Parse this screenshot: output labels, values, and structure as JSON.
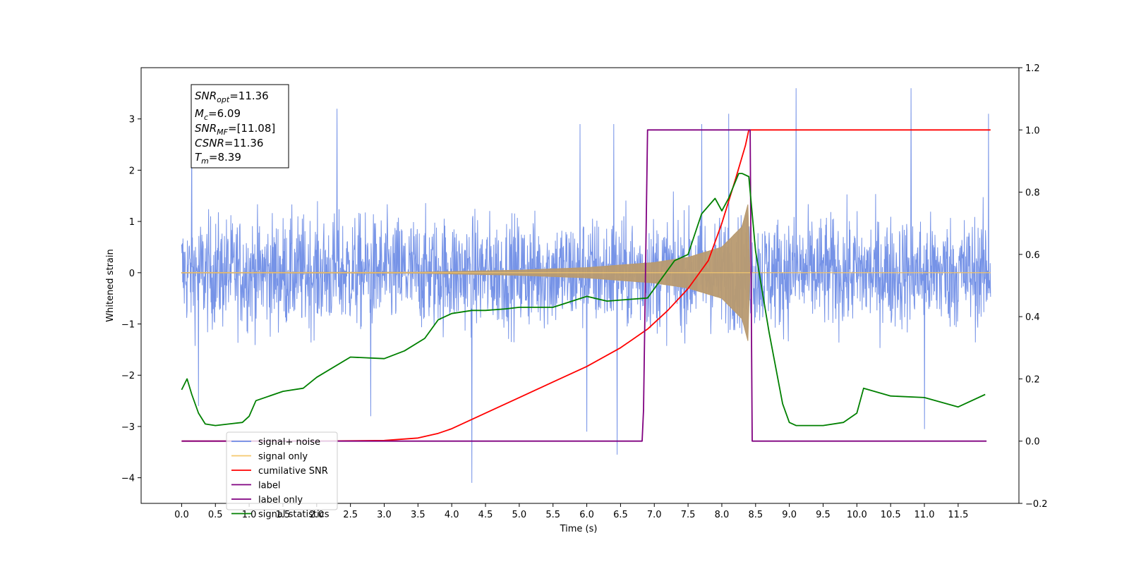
{
  "chart_data": {
    "type": "line",
    "xlabel": "Time (s)",
    "ylabel": "Whitened strain",
    "xlim": [
      -0.6,
      12.4
    ],
    "ylim": [
      -4.5,
      4.0
    ],
    "y2lim": [
      -0.2,
      1.2
    ],
    "x_ticks": [
      "0.0",
      "0.5",
      "1.0",
      "1.5",
      "2.0",
      "2.5",
      "3.0",
      "3.5",
      "4.0",
      "4.5",
      "5.0",
      "5.5",
      "6.0",
      "6.5",
      "7.0",
      "7.5",
      "8.0",
      "8.5",
      "9.0",
      "9.5",
      "10.0",
      "10.5",
      "11.0",
      "11.5"
    ],
    "y_ticks": [
      "3",
      "2",
      "1",
      "0",
      "−1",
      "−2",
      "−3",
      "−4"
    ],
    "y2_ticks": [
      "1.2",
      "1.0",
      "0.8",
      "0.6",
      "0.4",
      "0.2",
      "0.0",
      "−0.2"
    ],
    "legend_position": "lower left",
    "legend": [
      {
        "label": "signal+ noise",
        "color": "#6f8de6"
      },
      {
        "label": "signal only",
        "color": "#f5c86e"
      },
      {
        "label": "cumilative SNR",
        "color": "#ff0000"
      },
      {
        "label": "label",
        "color": "#800080"
      },
      {
        "label": "label only",
        "color": "#800080"
      },
      {
        "label": "signal statistics",
        "color": "#008000"
      }
    ],
    "info_box": {
      "snr_opt": {
        "symbol": "SNR",
        "sub": "opt",
        "value": "=11.36"
      },
      "mc": {
        "symbol": "M",
        "sub": "c",
        "value": "=6.09"
      },
      "snr_mf": {
        "symbol": "SNR",
        "sub": "MF",
        "value": "=[11.08]"
      },
      "csnr": {
        "symbol": "CSNR",
        "sub": "",
        "value": "=11.36"
      },
      "tm": {
        "symbol": "T",
        "sub": "m",
        "value": "=8.39"
      }
    },
    "series": [
      {
        "name": "signal+ noise",
        "axis": "left",
        "color": "#6f8de6",
        "kind": "noise",
        "t_start": 0.0,
        "t_end": 11.98,
        "band_low": -1.5,
        "band_high": 1.5,
        "spikes_high": [
          [
            0.15,
            2.7
          ],
          [
            2.3,
            3.2
          ],
          [
            5.9,
            2.9
          ],
          [
            6.4,
            2.9
          ],
          [
            7.7,
            2.9
          ],
          [
            8.1,
            3.1
          ],
          [
            9.1,
            3.6
          ],
          [
            10.8,
            3.6
          ],
          [
            11.95,
            3.1
          ]
        ],
        "spikes_low": [
          [
            0.25,
            -2.6
          ],
          [
            2.8,
            -2.8
          ],
          [
            4.3,
            -4.1
          ],
          [
            6.45,
            -3.55
          ],
          [
            6.0,
            -3.1
          ],
          [
            11.0,
            -3.05
          ]
        ]
      },
      {
        "name": "signal only",
        "axis": "left",
        "color": "#b89a70",
        "kind": "chirp",
        "t_start": 0.0,
        "t_merge": 8.4,
        "t_end": 11.98,
        "envelope_at": [
          [
            0.0,
            0.005
          ],
          [
            3.5,
            0.01
          ],
          [
            5.0,
            0.05
          ],
          [
            6.0,
            0.1
          ],
          [
            7.0,
            0.2
          ],
          [
            7.5,
            0.3
          ],
          [
            8.0,
            0.5
          ],
          [
            8.3,
            0.9
          ],
          [
            8.4,
            1.4
          ]
        ]
      },
      {
        "name": "cumilative SNR",
        "axis": "right",
        "color": "#ff0000",
        "x": [
          0.0,
          2.0,
          3.0,
          3.5,
          3.8,
          4.0,
          4.3,
          4.6,
          5.0,
          5.5,
          6.0,
          6.5,
          6.9,
          7.2,
          7.5,
          7.8,
          8.0,
          8.2,
          8.35,
          8.4,
          11.98
        ],
        "y": [
          0.0,
          0.0,
          0.002,
          0.01,
          0.025,
          0.04,
          0.07,
          0.1,
          0.14,
          0.19,
          0.24,
          0.3,
          0.36,
          0.42,
          0.49,
          0.58,
          0.7,
          0.84,
          0.95,
          1.0,
          1.0
        ]
      },
      {
        "name": "label",
        "axis": "right",
        "color": "#800080",
        "x": [
          0.0,
          6.82,
          6.84,
          6.9,
          8.38,
          8.42,
          8.45,
          11.92
        ],
        "y": [
          0.0,
          0.0,
          0.1,
          1.0,
          1.0,
          1.0,
          0.0,
          0.0
        ]
      },
      {
        "name": "signal statistics",
        "axis": "right",
        "color": "#008000",
        "x": [
          0.0,
          0.08,
          0.15,
          0.25,
          0.35,
          0.5,
          0.7,
          0.9,
          1.0,
          1.1,
          1.5,
          1.8,
          2.0,
          2.5,
          3.0,
          3.3,
          3.6,
          3.8,
          4.0,
          4.3,
          4.5,
          4.8,
          5.0,
          5.5,
          6.0,
          6.3,
          6.6,
          6.9,
          7.1,
          7.3,
          7.5,
          7.7,
          7.9,
          8.0,
          8.1,
          8.25,
          8.3,
          8.4,
          8.5,
          8.7,
          8.9,
          9.0,
          9.1,
          9.5,
          9.8,
          10.0,
          10.1,
          10.5,
          11.0,
          11.5,
          11.9
        ],
        "y": [
          0.165,
          0.2,
          0.15,
          0.09,
          0.055,
          0.05,
          0.055,
          0.06,
          0.08,
          0.13,
          0.16,
          0.17,
          0.205,
          0.27,
          0.265,
          0.29,
          0.33,
          0.39,
          0.41,
          0.42,
          0.42,
          0.425,
          0.43,
          0.43,
          0.465,
          0.45,
          0.455,
          0.46,
          0.52,
          0.58,
          0.6,
          0.73,
          0.78,
          0.74,
          0.78,
          0.86,
          0.86,
          0.85,
          0.61,
          0.35,
          0.12,
          0.06,
          0.05,
          0.05,
          0.06,
          0.09,
          0.17,
          0.145,
          0.14,
          0.11,
          0.15
        ]
      }
    ]
  }
}
